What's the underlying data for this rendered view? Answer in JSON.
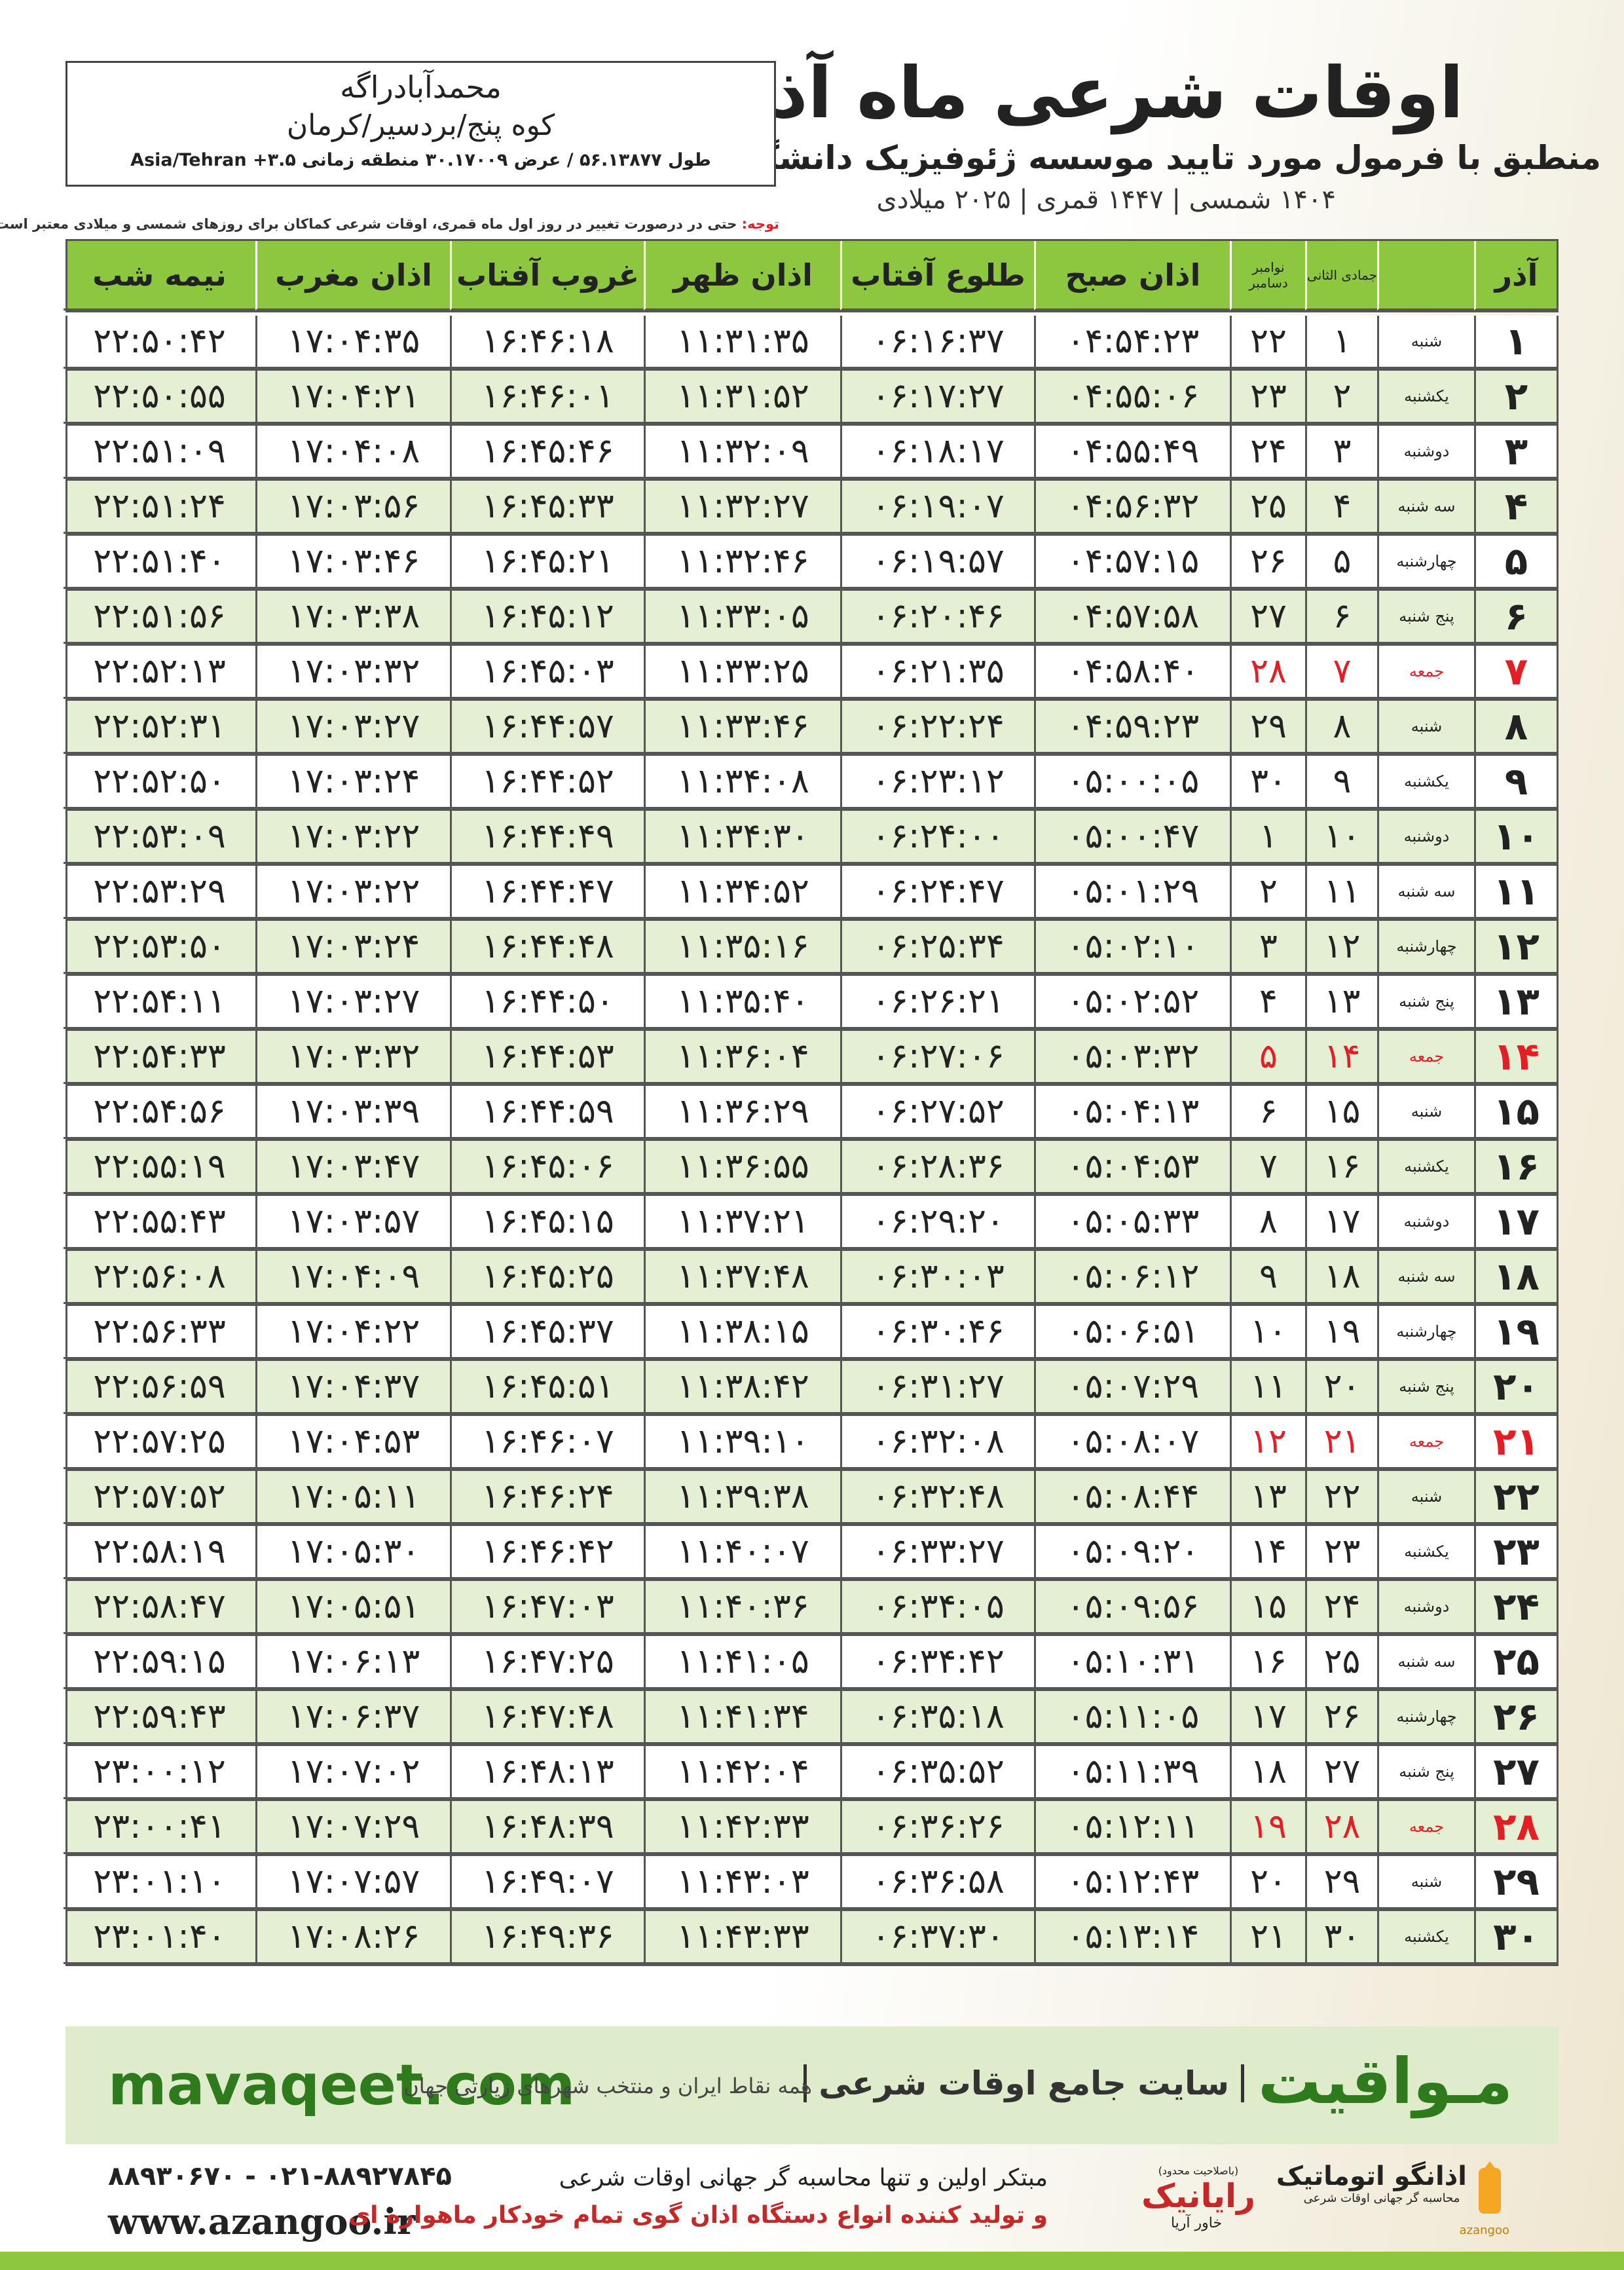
{
  "header": {
    "title": "اوقات شرعی ماه آذر",
    "subtitle": "منطبق با فرمول مورد تایید موسسه ژئوفیزیک دانشگاه تهران",
    "dates": "۱۴۰۴ شمسی | ۱۴۴۷ قمری | ۲۰۲۵ میلادی"
  },
  "location": {
    "name": "محمدآبادراگه",
    "place": "کوه پنج/بردسیر/کرمان",
    "coords": "طول ۵۶.۱۳۸۷۷ / عرض ۳۰.۱۷۰۰۹ منطقه زمانی ۳.۵+ Asia/Tehran"
  },
  "note": {
    "label": "توجه:",
    "text": "حتی در درصورت تغییر در روز اول ماه قمری، اوقات شرعی کماکان برای روزهای شمسی و میلادی معتبر است."
  },
  "table": {
    "holiday_color": "#e31e24",
    "headers": {
      "day": "آذر",
      "hijri": "جمادی الثانی",
      "gregorian": [
        "نوامبر",
        "دسامبر"
      ],
      "times": [
        "اذان صبح",
        "طلوع آفتاب",
        "اذان ظهر",
        "غروب آفتاب",
        "اذان مغرب",
        "نیمه شب"
      ]
    },
    "rows": [
      {
        "day": "۱",
        "weekday": "شنبه",
        "hijri": "۱",
        "gregorian": "۲۲",
        "times": [
          "۰۴:۵۴:۲۳",
          "۰۶:۱۶:۳۷",
          "۱۱:۳۱:۳۵",
          "۱۶:۴۶:۱۸",
          "۱۷:۰۴:۳۵",
          "۲۲:۵۰:۴۲"
        ]
      },
      {
        "day": "۲",
        "weekday": "یکشنبه",
        "hijri": "۲",
        "gregorian": "۲۳",
        "times": [
          "۰۴:۵۵:۰۶",
          "۰۶:۱۷:۲۷",
          "۱۱:۳۱:۵۲",
          "۱۶:۴۶:۰۱",
          "۱۷:۰۴:۲۱",
          "۲۲:۵۰:۵۵"
        ]
      },
      {
        "day": "۳",
        "weekday": "دوشنبه",
        "hijri": "۳",
        "gregorian": "۲۴",
        "times": [
          "۰۴:۵۵:۴۹",
          "۰۶:۱۸:۱۷",
          "۱۱:۳۲:۰۹",
          "۱۶:۴۵:۴۶",
          "۱۷:۰۴:۰۸",
          "۲۲:۵۱:۰۹"
        ]
      },
      {
        "day": "۴",
        "weekday": "سه شنبه",
        "hijri": "۴",
        "gregorian": "۲۵",
        "times": [
          "۰۴:۵۶:۳۲",
          "۰۶:۱۹:۰۷",
          "۱۱:۳۲:۲۷",
          "۱۶:۴۵:۳۳",
          "۱۷:۰۳:۵۶",
          "۲۲:۵۱:۲۴"
        ]
      },
      {
        "day": "۵",
        "weekday": "چهارشنبه",
        "hijri": "۵",
        "gregorian": "۲۶",
        "times": [
          "۰۴:۵۷:۱۵",
          "۰۶:۱۹:۵۷",
          "۱۱:۳۲:۴۶",
          "۱۶:۴۵:۲۱",
          "۱۷:۰۳:۴۶",
          "۲۲:۵۱:۴۰"
        ]
      },
      {
        "day": "۶",
        "weekday": "پنج شنبه",
        "hijri": "۶",
        "gregorian": "۲۷",
        "times": [
          "۰۴:۵۷:۵۸",
          "۰۶:۲۰:۴۶",
          "۱۱:۳۳:۰۵",
          "۱۶:۴۵:۱۲",
          "۱۷:۰۳:۳۸",
          "۲۲:۵۱:۵۶"
        ]
      },
      {
        "day": "۷",
        "weekday": "جمعه",
        "hijri": "۷",
        "gregorian": "۲۸",
        "holiday": true,
        "times": [
          "۰۴:۵۸:۴۰",
          "۰۶:۲۱:۳۵",
          "۱۱:۳۳:۲۵",
          "۱۶:۴۵:۰۳",
          "۱۷:۰۳:۳۲",
          "۲۲:۵۲:۱۳"
        ]
      },
      {
        "day": "۸",
        "weekday": "شنبه",
        "hijri": "۸",
        "gregorian": "۲۹",
        "times": [
          "۰۴:۵۹:۲۳",
          "۰۶:۲۲:۲۴",
          "۱۱:۳۳:۴۶",
          "۱۶:۴۴:۵۷",
          "۱۷:۰۳:۲۷",
          "۲۲:۵۲:۳۱"
        ]
      },
      {
        "day": "۹",
        "weekday": "یکشنبه",
        "hijri": "۹",
        "gregorian": "۳۰",
        "times": [
          "۰۵:۰۰:۰۵",
          "۰۶:۲۳:۱۲",
          "۱۱:۳۴:۰۸",
          "۱۶:۴۴:۵۲",
          "۱۷:۰۳:۲۴",
          "۲۲:۵۲:۵۰"
        ]
      },
      {
        "day": "۱۰",
        "weekday": "دوشنبه",
        "hijri": "۱۰",
        "gregorian": "۱",
        "times": [
          "۰۵:۰۰:۴۷",
          "۰۶:۲۴:۰۰",
          "۱۱:۳۴:۳۰",
          "۱۶:۴۴:۴۹",
          "۱۷:۰۳:۲۲",
          "۲۲:۵۳:۰۹"
        ]
      },
      {
        "day": "۱۱",
        "weekday": "سه شنبه",
        "hijri": "۱۱",
        "gregorian": "۲",
        "times": [
          "۰۵:۰۱:۲۹",
          "۰۶:۲۴:۴۷",
          "۱۱:۳۴:۵۲",
          "۱۶:۴۴:۴۷",
          "۱۷:۰۳:۲۲",
          "۲۲:۵۳:۲۹"
        ]
      },
      {
        "day": "۱۲",
        "weekday": "چهارشنبه",
        "hijri": "۱۲",
        "gregorian": "۳",
        "times": [
          "۰۵:۰۲:۱۰",
          "۰۶:۲۵:۳۴",
          "۱۱:۳۵:۱۶",
          "۱۶:۴۴:۴۸",
          "۱۷:۰۳:۲۴",
          "۲۲:۵۳:۵۰"
        ]
      },
      {
        "day": "۱۳",
        "weekday": "پنج شنبه",
        "hijri": "۱۳",
        "gregorian": "۴",
        "times": [
          "۰۵:۰۲:۵۲",
          "۰۶:۲۶:۲۱",
          "۱۱:۳۵:۴۰",
          "۱۶:۴۴:۵۰",
          "۱۷:۰۳:۲۷",
          "۲۲:۵۴:۱۱"
        ]
      },
      {
        "day": "۱۴",
        "weekday": "جمعه",
        "hijri": "۱۴",
        "gregorian": "۵",
        "holiday": true,
        "times": [
          "۰۵:۰۳:۳۲",
          "۰۶:۲۷:۰۶",
          "۱۱:۳۶:۰۴",
          "۱۶:۴۴:۵۳",
          "۱۷:۰۳:۳۲",
          "۲۲:۵۴:۳۳"
        ]
      },
      {
        "day": "۱۵",
        "weekday": "شنبه",
        "hijri": "۱۵",
        "gregorian": "۶",
        "times": [
          "۰۵:۰۴:۱۳",
          "۰۶:۲۷:۵۲",
          "۱۱:۳۶:۲۹",
          "۱۶:۴۴:۵۹",
          "۱۷:۰۳:۳۹",
          "۲۲:۵۴:۵۶"
        ]
      },
      {
        "day": "۱۶",
        "weekday": "یکشنبه",
        "hijri": "۱۶",
        "gregorian": "۷",
        "times": [
          "۰۵:۰۴:۵۳",
          "۰۶:۲۸:۳۶",
          "۱۱:۳۶:۵۵",
          "۱۶:۴۵:۰۶",
          "۱۷:۰۳:۴۷",
          "۲۲:۵۵:۱۹"
        ]
      },
      {
        "day": "۱۷",
        "weekday": "دوشنبه",
        "hijri": "۱۷",
        "gregorian": "۸",
        "times": [
          "۰۵:۰۵:۳۳",
          "۰۶:۲۹:۲۰",
          "۱۱:۳۷:۲۱",
          "۱۶:۴۵:۱۵",
          "۱۷:۰۳:۵۷",
          "۲۲:۵۵:۴۳"
        ]
      },
      {
        "day": "۱۸",
        "weekday": "سه شنبه",
        "hijri": "۱۸",
        "gregorian": "۹",
        "times": [
          "۰۵:۰۶:۱۲",
          "۰۶:۳۰:۰۳",
          "۱۱:۳۷:۴۸",
          "۱۶:۴۵:۲۵",
          "۱۷:۰۴:۰۹",
          "۲۲:۵۶:۰۸"
        ]
      },
      {
        "day": "۱۹",
        "weekday": "چهارشنبه",
        "hijri": "۱۹",
        "gregorian": "۱۰",
        "times": [
          "۰۵:۰۶:۵۱",
          "۰۶:۳۰:۴۶",
          "۱۱:۳۸:۱۵",
          "۱۶:۴۵:۳۷",
          "۱۷:۰۴:۲۲",
          "۲۲:۵۶:۳۳"
        ]
      },
      {
        "day": "۲۰",
        "weekday": "پنج شنبه",
        "hijri": "۲۰",
        "gregorian": "۱۱",
        "times": [
          "۰۵:۰۷:۲۹",
          "۰۶:۳۱:۲۷",
          "۱۱:۳۸:۴۲",
          "۱۶:۴۵:۵۱",
          "۱۷:۰۴:۳۷",
          "۲۲:۵۶:۵۹"
        ]
      },
      {
        "day": "۲۱",
        "weekday": "جمعه",
        "hijri": "۲۱",
        "gregorian": "۱۲",
        "holiday": true,
        "times": [
          "۰۵:۰۸:۰۷",
          "۰۶:۳۲:۰۸",
          "۱۱:۳۹:۱۰",
          "۱۶:۴۶:۰۷",
          "۱۷:۰۴:۵۳",
          "۲۲:۵۷:۲۵"
        ]
      },
      {
        "day": "۲۲",
        "weekday": "شنبه",
        "hijri": "۲۲",
        "gregorian": "۱۳",
        "times": [
          "۰۵:۰۸:۴۴",
          "۰۶:۳۲:۴۸",
          "۱۱:۳۹:۳۸",
          "۱۶:۴۶:۲۴",
          "۱۷:۰۵:۱۱",
          "۲۲:۵۷:۵۲"
        ]
      },
      {
        "day": "۲۳",
        "weekday": "یکشنبه",
        "hijri": "۲۳",
        "gregorian": "۱۴",
        "times": [
          "۰۵:۰۹:۲۰",
          "۰۶:۳۳:۲۷",
          "۱۱:۴۰:۰۷",
          "۱۶:۴۶:۴۲",
          "۱۷:۰۵:۳۰",
          "۲۲:۵۸:۱۹"
        ]
      },
      {
        "day": "۲۴",
        "weekday": "دوشنبه",
        "hijri": "۲۴",
        "gregorian": "۱۵",
        "times": [
          "۰۵:۰۹:۵۶",
          "۰۶:۳۴:۰۵",
          "۱۱:۴۰:۳۶",
          "۱۶:۴۷:۰۳",
          "۱۷:۰۵:۵۱",
          "۲۲:۵۸:۴۷"
        ]
      },
      {
        "day": "۲۵",
        "weekday": "سه شنبه",
        "hijri": "۲۵",
        "gregorian": "۱۶",
        "times": [
          "۰۵:۱۰:۳۱",
          "۰۶:۳۴:۴۲",
          "۱۱:۴۱:۰۵",
          "۱۶:۴۷:۲۵",
          "۱۷:۰۶:۱۳",
          "۲۲:۵۹:۱۵"
        ]
      },
      {
        "day": "۲۶",
        "weekday": "چهارشنبه",
        "hijri": "۲۶",
        "gregorian": "۱۷",
        "times": [
          "۰۵:۱۱:۰۵",
          "۰۶:۳۵:۱۸",
          "۱۱:۴۱:۳۴",
          "۱۶:۴۷:۴۸",
          "۱۷:۰۶:۳۷",
          "۲۲:۵۹:۴۳"
        ]
      },
      {
        "day": "۲۷",
        "weekday": "پنج شنبه",
        "hijri": "۲۷",
        "gregorian": "۱۸",
        "times": [
          "۰۵:۱۱:۳۹",
          "۰۶:۳۵:۵۲",
          "۱۱:۴۲:۰۴",
          "۱۶:۴۸:۱۳",
          "۱۷:۰۷:۰۲",
          "۲۳:۰۰:۱۲"
        ]
      },
      {
        "day": "۲۸",
        "weekday": "جمعه",
        "hijri": "۲۸",
        "gregorian": "۱۹",
        "holiday": true,
        "times": [
          "۰۵:۱۲:۱۱",
          "۰۶:۳۶:۲۶",
          "۱۱:۴۲:۳۳",
          "۱۶:۴۸:۳۹",
          "۱۷:۰۷:۲۹",
          "۲۳:۰۰:۴۱"
        ]
      },
      {
        "day": "۲۹",
        "weekday": "شنبه",
        "hijri": "۲۹",
        "gregorian": "۲۰",
        "times": [
          "۰۵:۱۲:۴۳",
          "۰۶:۳۶:۵۸",
          "۱۱:۴۳:۰۳",
          "۱۶:۴۹:۰۷",
          "۱۷:۰۷:۵۷",
          "۲۳:۰۱:۱۰"
        ]
      },
      {
        "day": "۳۰",
        "weekday": "یکشنبه",
        "hijri": "۳۰",
        "gregorian": "۲۱",
        "times": [
          "۰۵:۱۳:۱۴",
          "۰۶:۳۷:۳۰",
          "۱۱:۴۳:۳۳",
          "۱۶:۴۹:۳۶",
          "۱۷:۰۸:۲۶",
          "۲۳:۰۱:۴۰"
        ]
      }
    ]
  },
  "banner": {
    "brand": "مـواقیت",
    "slogan": "سایت جامع اوقات شرعی",
    "scope": "همه نقاط ایران و منتخب شهرهای زیارتی جهان",
    "url": "mavaqeet.com"
  },
  "footer": {
    "phones": "۰۲۱-۸۸۹۲۷۸۴۵ - ۸۸۹۳۰۶۷۰",
    "website": "www.azangoo.ir",
    "line1": "مبتکر اولین و تنها محاسبه گر جهانی اوقات شرعی",
    "line2": "و تولید کننده انواع دستگاه اذان گوی تمام خودکار ماهواره ای",
    "logo1_note": "(باصلاحیت محدود)",
    "logo1_name": "رایانیک",
    "logo1_sub": "خاور آریا",
    "logo2_name": "اذانگو اتوماتیک",
    "logo2_sub": "محاسبه گر جهانی اوقات شرعی",
    "logo2_latin": "azangoo"
  }
}
